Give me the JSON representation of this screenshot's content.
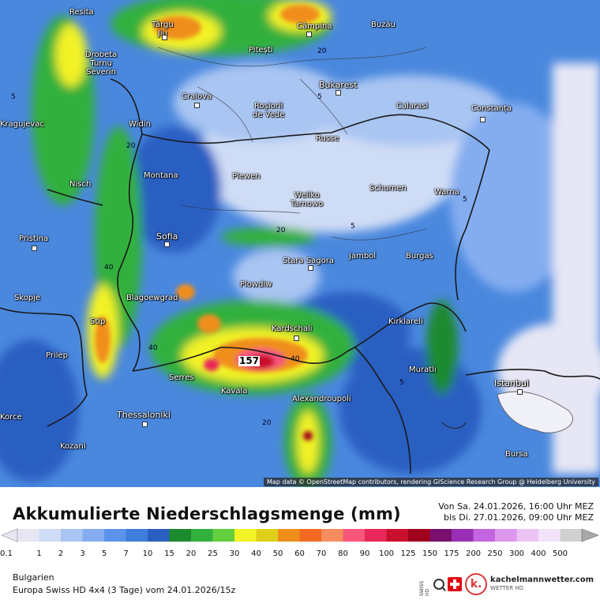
{
  "map": {
    "attribution": "Map data © OpenStreetMap contributors, rendering GIScience Research Group @ Heidelberg University",
    "max_value": "157",
    "cities": [
      {
        "name": "Resita"
      },
      {
        "name": "Târgu\nJiu"
      },
      {
        "name": "Câmpina"
      },
      {
        "name": "Buzău"
      },
      {
        "name": "Drobeta\nTurnu\nSeverin"
      },
      {
        "name": "Pitești"
      },
      {
        "name": "Bukarest"
      },
      {
        "name": "Craiova"
      },
      {
        "name": "Roșiorii\nde Vede"
      },
      {
        "name": "Calarasi"
      },
      {
        "name": "Constanța"
      },
      {
        "name": "Kragujevac"
      },
      {
        "name": "Widin"
      },
      {
        "name": "Russe"
      },
      {
        "name": "Montana"
      },
      {
        "name": "Plewen"
      },
      {
        "name": "Weliko\nTarnowo"
      },
      {
        "name": "Schumen"
      },
      {
        "name": "Warna"
      },
      {
        "name": "Nisch"
      },
      {
        "name": "Sofia"
      },
      {
        "name": "Pristina"
      },
      {
        "name": "Stara Sagora"
      },
      {
        "name": "Jambol"
      },
      {
        "name": "Burgas"
      },
      {
        "name": "Plowdiw"
      },
      {
        "name": "Skopje"
      },
      {
        "name": "Blagoewgrad"
      },
      {
        "name": "Kardschali"
      },
      {
        "name": "Kırklareli"
      },
      {
        "name": "Stip"
      },
      {
        "name": "Prilep"
      },
      {
        "name": "Serres"
      },
      {
        "name": "Kavala"
      },
      {
        "name": "Alexandroupoli"
      },
      {
        "name": "Muratlı"
      },
      {
        "name": "Istanbul"
      },
      {
        "name": "Thessaloniki"
      },
      {
        "name": "Korce"
      },
      {
        "name": "Kozani"
      },
      {
        "name": "Bursa"
      }
    ],
    "contour_labels": [
      "5",
      "20",
      "40",
      "5",
      "20",
      "40",
      "5",
      "20",
      "5",
      "40",
      "20",
      "5"
    ]
  },
  "legend": {
    "title": "Akkumulierte Niederschlagsmenge (mm)",
    "period_line1": "Von Sa. 24.01.2026, 16:00 Uhr MEZ",
    "period_line2": "bis Di. 27.01.2026, 09:00 Uhr MEZ",
    "region": "Bulgarien",
    "model": "Europa Swiss HD 4x4 (3 Tage) vom  24.01.2026/15z",
    "brand": "kachelmannwetter.com",
    "brand_sub": "WETTER HD",
    "swiss_hd": "SWISS HD",
    "scale": [
      {
        "label": "0.1",
        "color": "#e6e6f5"
      },
      {
        "label": "1",
        "color": "#cfdcf5"
      },
      {
        "label": "2",
        "color": "#a9c5f2"
      },
      {
        "label": "3",
        "color": "#84adf0"
      },
      {
        "label": "5",
        "color": "#5b93ea"
      },
      {
        "label": "7",
        "color": "#3f7ddc"
      },
      {
        "label": "10",
        "color": "#2a5fc2"
      },
      {
        "label": "15",
        "color": "#1e8a2e"
      },
      {
        "label": "20",
        "color": "#31b03c"
      },
      {
        "label": "25",
        "color": "#63cf3c"
      },
      {
        "label": "30",
        "color": "#f2f227"
      },
      {
        "label": "40",
        "color": "#e0cf18"
      },
      {
        "label": "50",
        "color": "#f08e1c"
      },
      {
        "label": "60",
        "color": "#f26a22"
      },
      {
        "label": "70",
        "color": "#f78d5e"
      },
      {
        "label": "80",
        "color": "#f7557a"
      },
      {
        "label": "90",
        "color": "#e8285a"
      },
      {
        "label": "100",
        "color": "#c8102e"
      },
      {
        "label": "125",
        "color": "#a0001a"
      },
      {
        "label": "150",
        "color": "#7a0f6e"
      },
      {
        "label": "175",
        "color": "#9a2fb5"
      },
      {
        "label": "200",
        "color": "#c365e0"
      },
      {
        "label": "250",
        "color": "#dc98ee"
      },
      {
        "label": "300",
        "color": "#ecc3f5"
      },
      {
        "label": "400",
        "color": "#f3e3f8"
      },
      {
        "label": "500",
        "color": "#d0d0d0"
      }
    ]
  }
}
